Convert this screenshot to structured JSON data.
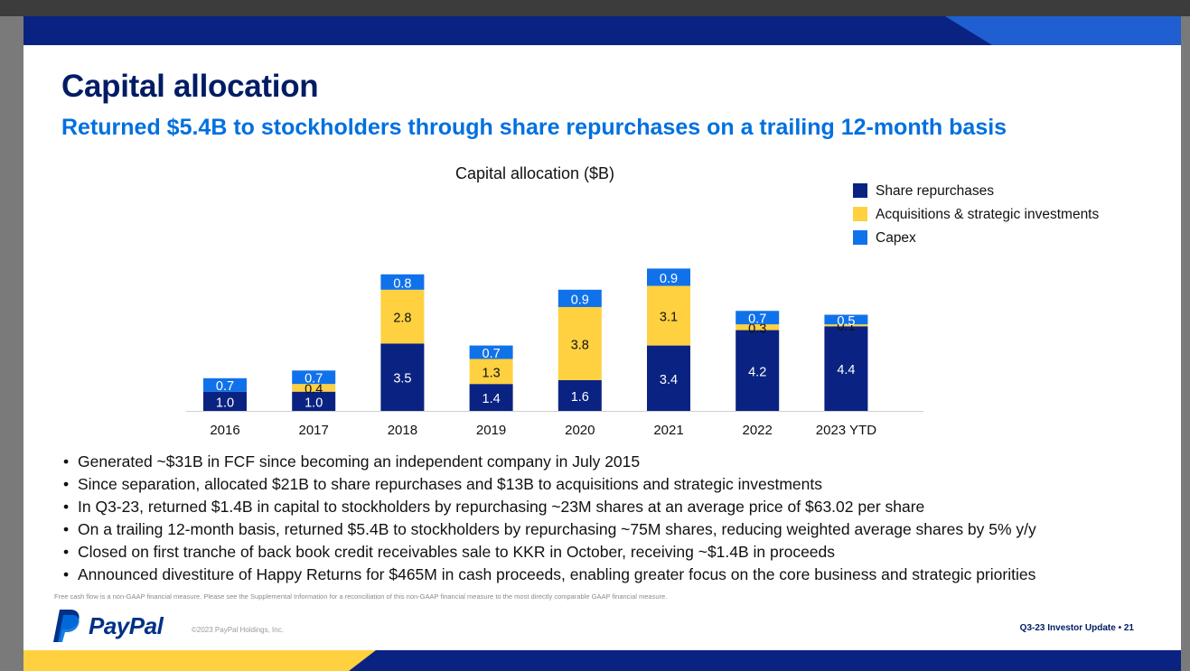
{
  "slide": {
    "title": "Capital allocation",
    "subtitle": "Returned $5.4B to stockholders through share repurchases on a trailing 12-month basis"
  },
  "chart_data": {
    "type": "bar",
    "stacked": true,
    "title": "Capital allocation ($B)",
    "categories": [
      "2016",
      "2017",
      "2018",
      "2019",
      "2020",
      "2021",
      "2022",
      "2023 YTD"
    ],
    "series": [
      {
        "name": "Share repurchases",
        "color": "#0a2382",
        "label_color": "#ffffff",
        "values": [
          1.0,
          1.0,
          3.5,
          1.4,
          1.6,
          3.4,
          4.2,
          4.4
        ],
        "labels": [
          "1.0",
          "1.0",
          "3.5",
          "1.4",
          "1.6",
          "3.4",
          "4.2",
          "4.4"
        ]
      },
      {
        "name": "Acquisitions & strategic investments",
        "color": "#ffd140",
        "label_color": "#111111",
        "values": [
          0,
          0.4,
          2.8,
          1.3,
          3.8,
          3.1,
          0.3,
          0.1
        ],
        "labels": [
          "",
          "0.4",
          "2.8",
          "1.3",
          "3.8",
          "3.1",
          "0.3",
          "0.1"
        ]
      },
      {
        "name": "Capex",
        "color": "#1072eb",
        "label_color": "#ffffff",
        "values": [
          0.7,
          0.7,
          0.8,
          0.7,
          0.9,
          0.9,
          0.7,
          0.5
        ],
        "labels": [
          "0.7",
          "0.7",
          "0.8",
          "0.7",
          "0.9",
          "0.9",
          "0.7",
          "0.5"
        ]
      }
    ],
    "xlabel": "",
    "ylabel": "",
    "legend_position": "top-right",
    "grid": false
  },
  "bullets": [
    "Generated ~$31B in FCF since becoming an independent company in July 2015",
    "Since separation, allocated $21B to share repurchases and $13B to acquisitions and strategic investments",
    "In Q3-23, returned $1.4B in capital to stockholders by repurchasing ~23M shares at an average price of $63.02 per share",
    "On a trailing 12-month basis, returned $5.4B to stockholders by repurchasing ~75M shares, reducing weighted average shares by 5% y/y",
    "Closed on first tranche of back book credit receivables sale to KKR in October, receiving ~$1.4B in proceeds",
    "Announced divestiture of Happy Returns for $465M in cash proceeds, enabling greater focus on the core business and strategic priorities"
  ],
  "bullet_glyph": "•",
  "footnote": "Free cash flow is a non-GAAP financial measure. Please see the Supplemental Information for a reconciliation of this non-GAAP financial measure to the most directly comparable GAAP financial measure.",
  "footer": {
    "brand": "PayPal",
    "copyright": "©2023 PayPal Holdings, Inc.",
    "page_label": "Q3-23 Investor Update • 21"
  },
  "colors": {
    "navy": "#001c64",
    "accent_blue": "#0070e0",
    "band_dark": "#0a2382",
    "band_yellow": "#ffd140"
  }
}
